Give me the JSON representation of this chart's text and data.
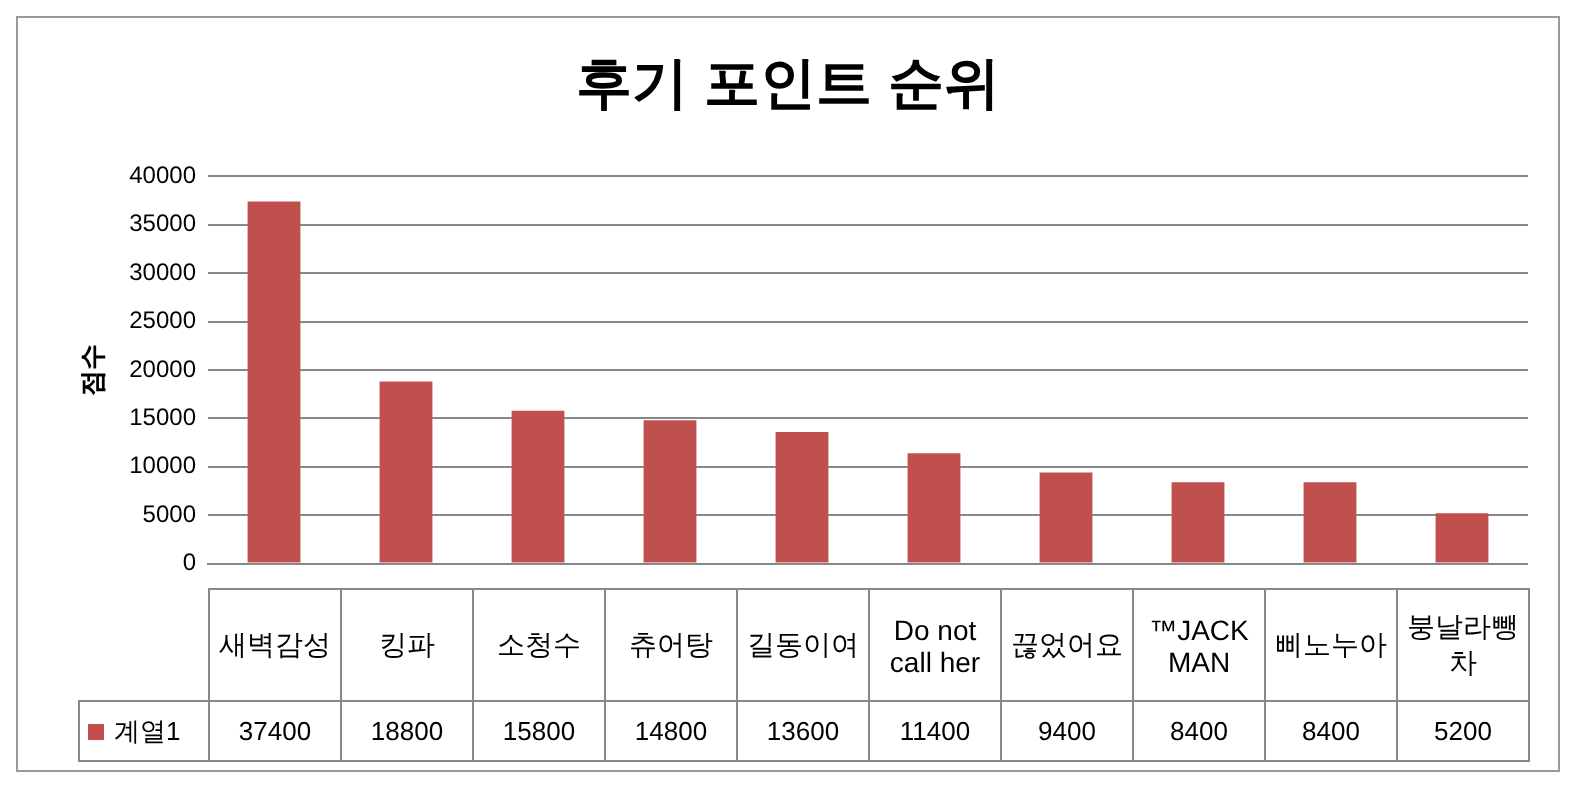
{
  "chart_data": {
    "type": "bar",
    "title": "후기 포인트 순위",
    "ylabel": "점수",
    "categories": [
      "새벽감성",
      "킹파",
      "소청수",
      "츄어탕",
      "길동이여",
      "Do not call her",
      "끊었어요",
      "™JACKMAN",
      "삐노누아",
      "붕날라뺑차"
    ],
    "series": [
      {
        "name": "계열1",
        "color": "#c0504d",
        "values": [
          37400,
          18800,
          15800,
          14800,
          13600,
          11400,
          9400,
          8400,
          8400,
          5200
        ]
      }
    ],
    "ylim": [
      0,
      40000
    ],
    "yticks": [
      0,
      5000,
      10000,
      15000,
      20000,
      25000,
      30000,
      35000,
      40000
    ],
    "grid": "y",
    "legend": "bottom left",
    "data_labels": true
  }
}
